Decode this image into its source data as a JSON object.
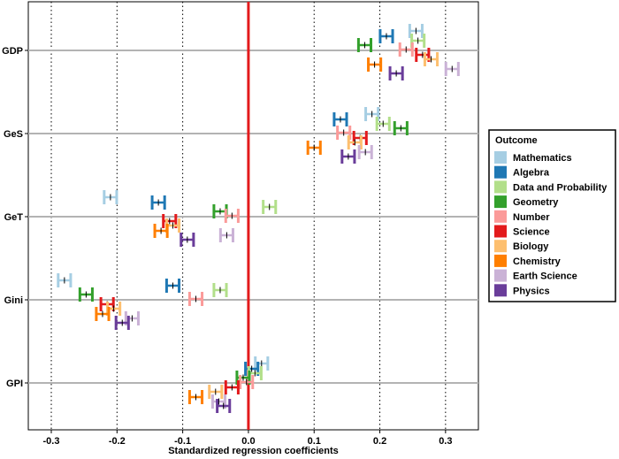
{
  "chart_data": {
    "type": "scatter",
    "title": "",
    "xlabel": "Standardized regression coefficients",
    "ylabel": "",
    "xlim": [
      -0.335,
      0.35
    ],
    "xticks": [
      -0.3,
      -0.2,
      -0.1,
      0.0,
      0.1,
      0.2,
      0.3
    ],
    "xtick_labels": [
      "-0.3",
      "-0.2",
      "-0.1",
      "0.0",
      "0.1",
      "0.2",
      "0.3"
    ],
    "categories": [
      "GDP",
      "GeS",
      "GeT",
      "Gini",
      "GPI"
    ],
    "reference_line_x": 0,
    "reference_line_color": "#e31a1c",
    "error_bars": "approx. ±0.01",
    "legend": {
      "title": "Outcome",
      "position": "right"
    },
    "series": [
      {
        "name": "Mathematics",
        "color": "#a6cee3",
        "values": [
          0.255,
          0.188,
          -0.21,
          -0.28,
          0.02
        ]
      },
      {
        "name": "Algebra",
        "color": "#1f78b4",
        "values": [
          0.21,
          0.14,
          -0.137,
          -0.115,
          0.005
        ]
      },
      {
        "name": "Data and Probability",
        "color": "#b2df8a",
        "values": [
          0.258,
          0.205,
          0.032,
          -0.043,
          0.01
        ]
      },
      {
        "name": "Geometry",
        "color": "#33a02c",
        "values": [
          0.177,
          0.232,
          -0.043,
          -0.247,
          -0.008
        ]
      },
      {
        "name": "Number",
        "color": "#fb9a99",
        "values": [
          0.24,
          0.145,
          -0.025,
          -0.08,
          -0.003
        ]
      },
      {
        "name": "Science",
        "color": "#e31a1c",
        "values": [
          0.265,
          0.17,
          -0.12,
          -0.215,
          -0.025
        ]
      },
      {
        "name": "Biology",
        "color": "#fdbf6f",
        "values": [
          0.278,
          0.162,
          -0.115,
          -0.205,
          -0.05
        ]
      },
      {
        "name": "Chemistry",
        "color": "#ff7f00",
        "values": [
          0.192,
          0.1,
          -0.133,
          -0.222,
          -0.08
        ]
      },
      {
        "name": "Earth Science",
        "color": "#cab2d6",
        "values": [
          0.31,
          0.178,
          -0.033,
          -0.177,
          -0.045
        ]
      },
      {
        "name": "Physics",
        "color": "#6a3d9a",
        "values": [
          0.225,
          0.152,
          -0.093,
          -0.192,
          -0.038
        ]
      }
    ]
  }
}
